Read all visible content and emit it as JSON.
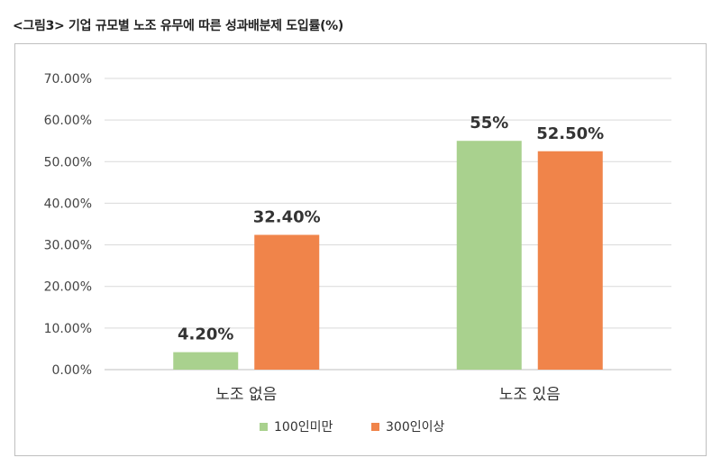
{
  "caption": "<그림3> 기업 규모별 노조 유무에 따른 성과배분제 도입률(%)",
  "chart_data": {
    "type": "bar",
    "title": "",
    "xlabel": "",
    "ylabel": "",
    "categories": [
      "노조 없음",
      "노조 있음"
    ],
    "series": [
      {
        "name": "100인미만",
        "values": [
          4.2,
          55
        ],
        "labels": [
          "4.20%",
          "55%"
        ],
        "color": "#a9d18e"
      },
      {
        "name": "300인이상",
        "values": [
          32.4,
          52.5
        ],
        "labels": [
          "32.40%",
          "52.50%"
        ],
        "color": "#f0844a"
      }
    ],
    "ylim": [
      0,
      70
    ],
    "yticks": [
      0,
      10,
      20,
      30,
      40,
      50,
      60,
      70
    ],
    "ytick_labels": [
      "0.00%",
      "10.00%",
      "20.00%",
      "30.00%",
      "40.00%",
      "50.00%",
      "60.00%",
      "70.00%"
    ],
    "grid": true,
    "legend_position": "bottom"
  }
}
